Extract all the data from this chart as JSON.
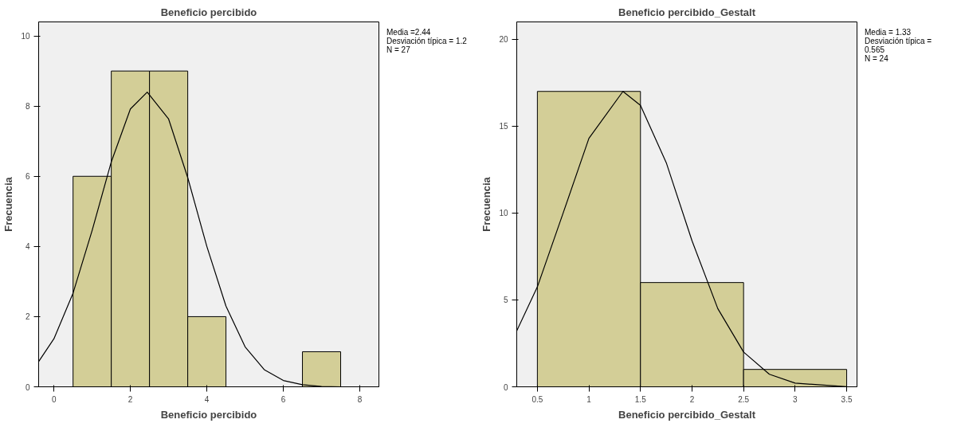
{
  "chart_data": [
    {
      "type": "histogram",
      "title": "Beneficio percibido",
      "xlabel": "Beneficio percibido",
      "ylabel": "Frecuencia",
      "bins": [
        0.5,
        1.5,
        2.5,
        3.5,
        4.5,
        5.5,
        6.5,
        7.5
      ],
      "values": [
        6,
        9,
        9,
        2,
        0,
        0,
        1
      ],
      "color": "#d3ce97",
      "xlim": [
        -0.4,
        8.5
      ],
      "ylim": [
        0,
        10.4
      ],
      "xticks": [
        0,
        2,
        4,
        6,
        8
      ],
      "yticks": [
        0,
        2,
        4,
        6,
        8,
        10
      ],
      "grid": false,
      "annotations": [
        "Media =2.44",
        "Desviación típica = 1.2",
        "N = 27"
      ],
      "series": [
        {
          "type": "line",
          "color": "#000000",
          "x": [
            -0.4,
            0,
            0.5,
            1,
            1.5,
            2,
            2.44,
            3,
            3.5,
            4,
            4.5,
            5,
            5.5,
            6,
            6.5,
            7,
            7.5,
            8,
            8.5
          ],
          "values": [
            0.72,
            1.37,
            2.67,
            4.46,
            6.41,
            7.92,
            8.4,
            7.63,
            5.96,
            4.0,
            2.3,
            1.14,
            0.49,
            0.18,
            0.06,
            0.01,
            0,
            0,
            0
          ]
        }
      ]
    },
    {
      "type": "histogram",
      "title": "Beneficio percibido_Gestalt",
      "xlabel": "Beneficio percibido_Gestalt",
      "ylabel": "Frecuencia",
      "bins": [
        0.5,
        1.5,
        2.5,
        3.5
      ],
      "values": [
        17,
        6,
        1
      ],
      "color": "#d3ce97",
      "xlim": [
        0.3,
        3.6
      ],
      "ylim": [
        0,
        21
      ],
      "xticks": [
        0.5,
        1,
        1.5,
        2,
        2.5,
        3,
        3.5
      ],
      "yticks": [
        0,
        5,
        10,
        15,
        20
      ],
      "grid": false,
      "annotations": [
        "Media = 1.33",
        "Desviación típica = 0.565",
        "N = 24"
      ],
      "series": [
        {
          "type": "line",
          "color": "#000000",
          "x": [
            0.3,
            0.5,
            0.75,
            1,
            1.33,
            1.5,
            1.75,
            2,
            2.25,
            2.5,
            2.75,
            3,
            3.5,
            3.6
          ],
          "values": [
            3.22,
            5.75,
            10.0,
            14.3,
            17,
            16.2,
            12.9,
            8.4,
            4.5,
            2.0,
            0.72,
            0.21,
            0.01,
            0
          ]
        }
      ]
    }
  ]
}
